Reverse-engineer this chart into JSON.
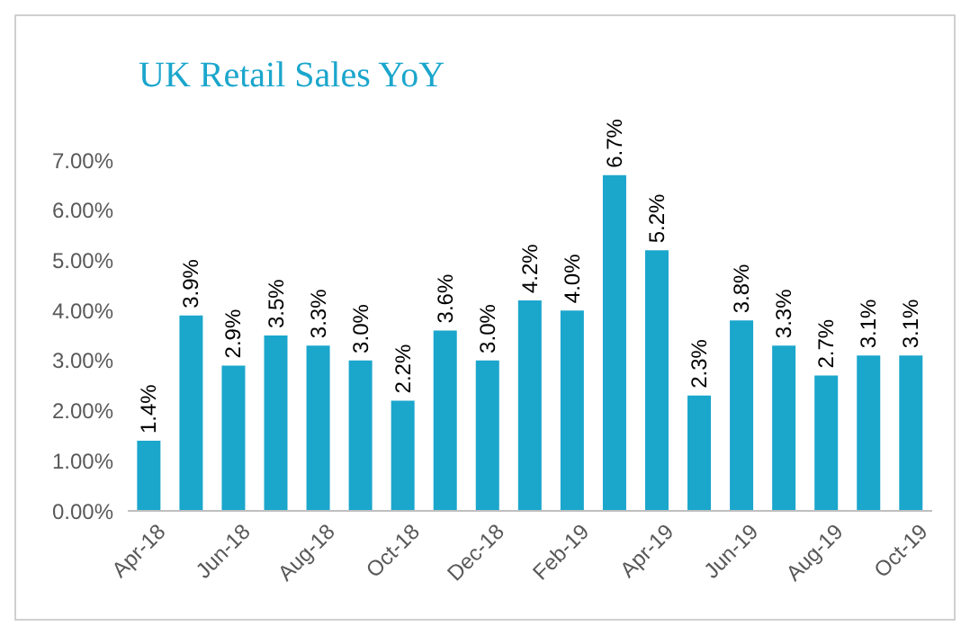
{
  "chart_data": {
    "type": "bar",
    "title": "UK Retail Sales YoY",
    "categories": [
      "Apr-18",
      null,
      "Jun-18",
      null,
      "Aug-18",
      null,
      "Oct-18",
      null,
      "Dec-18",
      null,
      "Feb-19",
      null,
      "Apr-19",
      null,
      "Jun-19",
      null,
      "Aug-19",
      null,
      "Oct-19"
    ],
    "values": [
      1.4,
      3.9,
      2.9,
      3.5,
      3.3,
      3.0,
      2.2,
      3.6,
      3.0,
      4.2,
      4.0,
      6.7,
      5.2,
      2.3,
      3.8,
      3.3,
      2.7,
      3.1,
      3.1
    ],
    "value_labels": [
      "1.4%",
      "3.9%",
      "2.9%",
      "3.5%",
      "3.3%",
      "3.0%",
      "2.2%",
      "3.6%",
      "3.0%",
      "4.2%",
      "4.0%",
      "6.7%",
      "5.2%",
      "2.3%",
      "3.8%",
      "3.3%",
      "2.7%",
      "3.1%",
      "3.1%"
    ],
    "color": "#1ba6cc",
    "ylim": [
      0,
      7
    ],
    "yticks": [
      {
        "value": 0,
        "label": "0.00%"
      },
      {
        "value": 1,
        "label": "1.00%"
      },
      {
        "value": 2,
        "label": "2.00%"
      },
      {
        "value": 3,
        "label": "3.00%"
      },
      {
        "value": 4,
        "label": "4.00%"
      },
      {
        "value": 5,
        "label": "5.00%"
      },
      {
        "value": 6,
        "label": "6.00%"
      },
      {
        "value": 7,
        "label": "7.00%"
      }
    ],
    "grid": false,
    "legend": false
  }
}
